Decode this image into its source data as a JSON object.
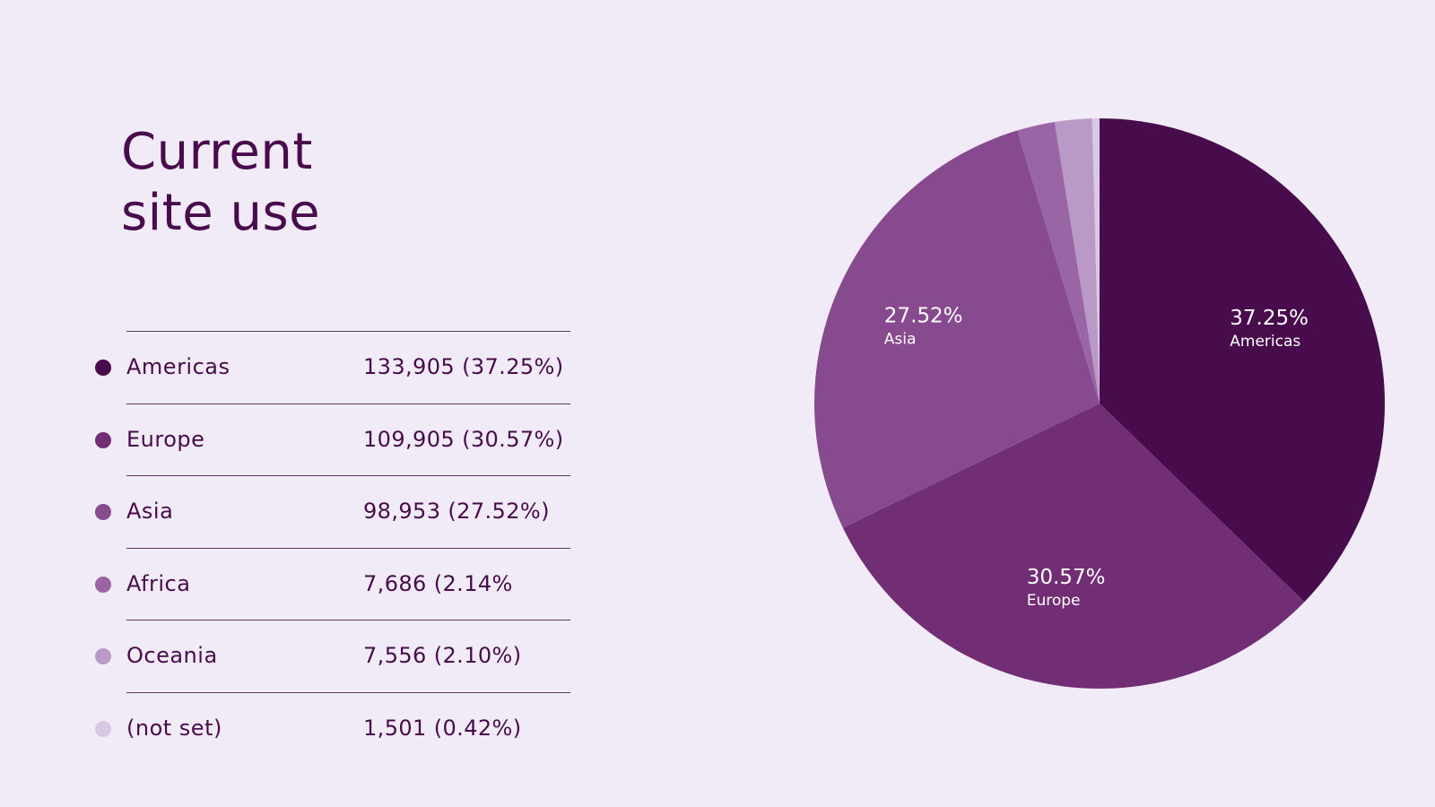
{
  "title": {
    "line1": "Current",
    "line2": "site use"
  },
  "legend": [
    {
      "name": "Americas",
      "value": "133,905 (37.25%)",
      "color": "#480b4b"
    },
    {
      "name": "Europe",
      "value": "109,905 (30.57%)",
      "color": "#722e74"
    },
    {
      "name": "Asia",
      "value": "98,953 (27.52%)",
      "color": "#874a8e"
    },
    {
      "name": "Africa",
      "value": "7,686 (2.14%",
      "color": "#9a65a5"
    },
    {
      "name": "Oceania",
      "value": "7,556 (2.10%)",
      "color": "#b99ac7"
    },
    {
      "name": "(not set)",
      "value": "1,501 (0.42%)",
      "color": "#d8c8e3"
    }
  ],
  "chart_data": {
    "type": "pie",
    "categories": [
      "Americas",
      "Europe",
      "Asia",
      "Africa",
      "Oceania",
      "(not set)"
    ],
    "values": [
      133905,
      109905,
      98953,
      7686,
      7556,
      1501
    ],
    "percentages": [
      37.25,
      30.57,
      27.52,
      2.14,
      2.1,
      0.42
    ],
    "colors": [
      "#480b4b",
      "#722e74",
      "#874a8e",
      "#9a65a5",
      "#b99ac7",
      "#d8c8e3"
    ],
    "start_angle_deg": 0,
    "direction": "clockwise",
    "slice_labels": [
      {
        "category": "Americas",
        "pct": "37.25%",
        "name": "Americas"
      },
      {
        "category": "Europe",
        "pct": "30.57%",
        "name": "Europe"
      },
      {
        "category": "Asia",
        "pct": "27.52%",
        "name": "Asia"
      }
    ]
  }
}
